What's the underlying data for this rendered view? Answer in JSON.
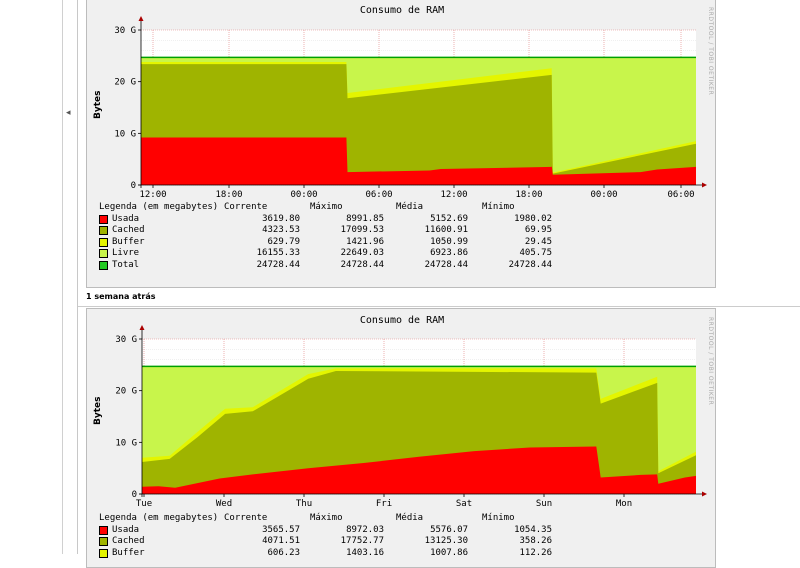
{
  "section_label": "1 semana atrás",
  "rrd_credit": "RRDTOOL / TOBI OETIKER",
  "colors": {
    "usada": "#ff0000",
    "cached": "#9fb400",
    "buffer": "#e4f500",
    "livre": "#c8f54b",
    "total": "#00a000"
  },
  "graphs": [
    {
      "title": "Consumo de RAM",
      "ylabel": "Bytes",
      "y_ticks": [
        "30 G",
        "20 G",
        "10 G",
        "0"
      ],
      "x_ticks": [
        "12:00",
        "18:00",
        "00:00",
        "06:00",
        "12:00",
        "18:00",
        "00:00",
        "06:00"
      ],
      "legend_header": [
        "Legenda (em megabytes)",
        "Corrente",
        "Máximo",
        "Média",
        "Mínimo"
      ],
      "legend": [
        {
          "label": "Usada",
          "color": "#ff0000",
          "cur": "3619.80",
          "max": "8991.85",
          "avg": "5152.69",
          "min": "1980.02"
        },
        {
          "label": "Cached",
          "color": "#9fb400",
          "cur": "4323.53",
          "max": "17099.53",
          "avg": "11600.91",
          "min": "69.95"
        },
        {
          "label": "Buffer",
          "color": "#e4f500",
          "cur": "629.79",
          "max": "1421.96",
          "avg": "1050.99",
          "min": "29.45"
        },
        {
          "label": "Livre",
          "color": "#c8f54b",
          "cur": "16155.33",
          "max": "22649.03",
          "avg": "6923.86",
          "min": "405.75"
        },
        {
          "label": "Total",
          "color": "#22c822",
          "cur": "24728.44",
          "max": "24728.44",
          "avg": "24728.44",
          "min": "24728.44"
        }
      ]
    },
    {
      "title": "Consumo de RAM",
      "ylabel": "Bytes",
      "y_ticks": [
        "30 G",
        "20 G",
        "10 G",
        "0"
      ],
      "x_ticks": [
        "Tue",
        "Wed",
        "Thu",
        "Fri",
        "Sat",
        "Sun",
        "Mon"
      ],
      "legend_header": [
        "Legenda (em megabytes)",
        "Corrente",
        "Máximo",
        "Média",
        "Mínimo"
      ],
      "legend": [
        {
          "label": "Usada",
          "color": "#ff0000",
          "cur": "3565.57",
          "max": "8972.03",
          "avg": "5576.07",
          "min": "1054.35"
        },
        {
          "label": "Cached",
          "color": "#9fb400",
          "cur": "4071.51",
          "max": "17752.77",
          "avg": "13125.30",
          "min": "358.26"
        },
        {
          "label": "Buffer",
          "color": "#e4f500",
          "cur": "606.23",
          "max": "1403.16",
          "avg": "1007.86",
          "min": "112.26"
        }
      ]
    }
  ],
  "chart_data": [
    {
      "type": "area",
      "title": "Consumo de RAM",
      "ylabel": "Bytes",
      "ylim": [
        0,
        30
      ],
      "y_unit": "G",
      "x": [
        "12:00",
        "18:00",
        "00:00",
        "06:00",
        "12:00",
        "18:00",
        "00:00",
        "06:00"
      ],
      "total": 24.7,
      "series": [
        {
          "name": "Usada",
          "points": [
            [
              0,
              9.2
            ],
            [
              0.37,
              9.2
            ],
            [
              0.372,
              2.5
            ],
            [
              0.52,
              2.8
            ],
            [
              0.54,
              3.1
            ],
            [
              0.74,
              3.5
            ],
            [
              0.74,
              3.8
            ],
            [
              0.742,
              2.0
            ],
            [
              0.9,
              2.5
            ],
            [
              0.93,
              3.0
            ],
            [
              1,
              3.5
            ]
          ]
        },
        {
          "name": "Cached",
          "points": [
            [
              0,
              23.4
            ],
            [
              0.37,
              23.4
            ],
            [
              0.372,
              16.8
            ],
            [
              0.74,
              21.3
            ],
            [
              0.742,
              2.2
            ],
            [
              1,
              8.0
            ]
          ]
        },
        {
          "name": "Buffer",
          "points": [
            [
              0,
              23.8
            ],
            [
              0.37,
              23.8
            ],
            [
              0.372,
              17.8
            ],
            [
              0.74,
              22.6
            ],
            [
              0.742,
              2.4
            ],
            [
              1,
              8.5
            ]
          ]
        }
      ]
    },
    {
      "type": "area",
      "title": "Consumo de RAM",
      "ylabel": "Bytes",
      "ylim": [
        0,
        30
      ],
      "y_unit": "G",
      "x": [
        "Tue",
        "Wed",
        "Thu",
        "Fri",
        "Sat",
        "Sun",
        "Mon"
      ],
      "total": 24.7,
      "series": [
        {
          "name": "Usada",
          "points": [
            [
              0,
              1.4
            ],
            [
              0.03,
              1.5
            ],
            [
              0.06,
              1.2
            ],
            [
              0.14,
              3.0
            ],
            [
              0.2,
              3.8
            ],
            [
              0.3,
              5.0
            ],
            [
              0.4,
              6.0
            ],
            [
              0.5,
              7.2
            ],
            [
              0.6,
              8.3
            ],
            [
              0.7,
              9.0
            ],
            [
              0.82,
              9.2
            ],
            [
              0.828,
              3.2
            ],
            [
              0.9,
              3.7
            ],
            [
              0.93,
              3.8
            ],
            [
              0.932,
              2.0
            ],
            [
              0.98,
              3.2
            ],
            [
              1,
              3.5
            ]
          ]
        },
        {
          "name": "Cached",
          "points": [
            [
              0,
              6.2
            ],
            [
              0.05,
              6.8
            ],
            [
              0.1,
              11.0
            ],
            [
              0.15,
              15.5
            ],
            [
              0.2,
              16.0
            ],
            [
              0.3,
              22.3
            ],
            [
              0.35,
              23.8
            ],
            [
              0.82,
              23.5
            ],
            [
              0.828,
              17.5
            ],
            [
              0.93,
              21.5
            ],
            [
              0.932,
              4.0
            ],
            [
              1,
              7.5
            ]
          ]
        },
        {
          "name": "Buffer",
          "points": [
            [
              0,
              7.0
            ],
            [
              0.05,
              7.4
            ],
            [
              0.1,
              12.0
            ],
            [
              0.15,
              16.5
            ],
            [
              0.2,
              16.8
            ],
            [
              0.3,
              23.2
            ],
            [
              0.35,
              24.3
            ],
            [
              0.82,
              24.3
            ],
            [
              0.828,
              18.4
            ],
            [
              0.93,
              22.7
            ],
            [
              0.932,
              4.4
            ],
            [
              1,
              8.2
            ]
          ]
        }
      ]
    }
  ]
}
